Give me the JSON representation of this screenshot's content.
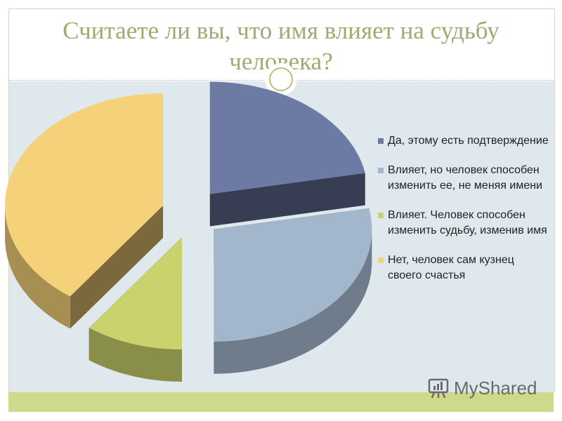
{
  "slide": {
    "title": "Считаете ли вы, что имя влияет на судьбу человека?"
  },
  "chart_data": {
    "type": "pie",
    "title": "",
    "style": "3d-exploded",
    "legend_position": "right",
    "categories": [
      "Да, этому есть подтверждение",
      "Влияет, но человек способен изменить ее, не меняя имени",
      "Влияет. Человек способен изменить судьбу, изменив имя",
      "Нет, человек сам кузнец своего счастья"
    ],
    "values": [
      22,
      28,
      10,
      40
    ],
    "colors": [
      "#6d7aa3",
      "#a2b6cc",
      "#c9d26c",
      "#f5d27a"
    ]
  },
  "watermark": {
    "text": "MyShared"
  }
}
